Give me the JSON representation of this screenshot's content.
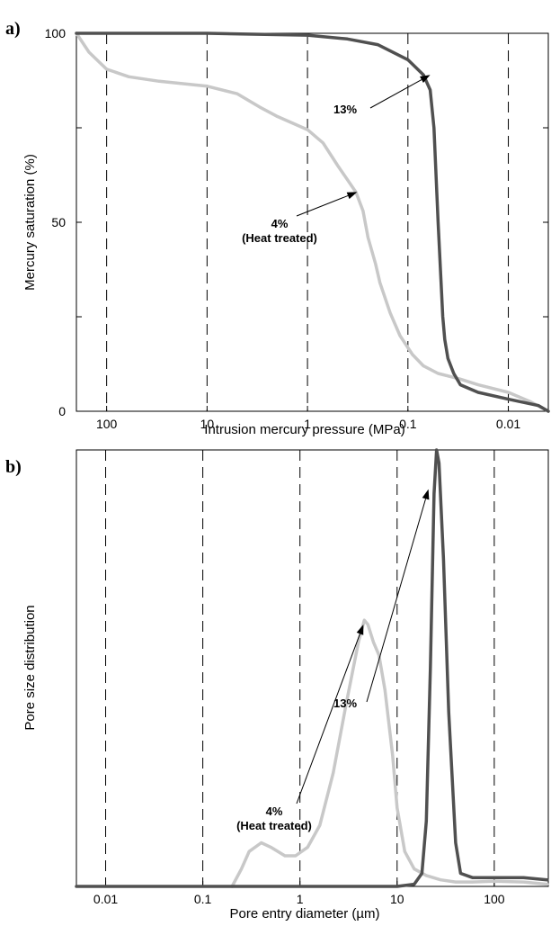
{
  "chart_data": [
    {
      "panel": "a)",
      "type": "line",
      "xlabel": "Intrusion mercury pressure (MPa)",
      "ylabel": "Mercury saturation (%)",
      "x_scale": "log",
      "x_reversed": true,
      "xlim": [
        200,
        0.004
      ],
      "ylim": [
        0,
        100
      ],
      "x_ticks": [
        {
          "value": 100,
          "label": "100"
        },
        {
          "value": 10,
          "label": "10"
        },
        {
          "value": 1,
          "label": "1"
        },
        {
          "value": 0.1,
          "label": "0.1"
        },
        {
          "value": 0.01,
          "label": "0.01"
        }
      ],
      "y_ticks": [
        {
          "value": 0,
          "label": "0"
        },
        {
          "value": 50,
          "label": "50"
        },
        {
          "value": 100,
          "label": "100"
        }
      ],
      "grid": "vertical dashed at major x ticks",
      "series": [
        {
          "color": "#c8c8c8",
          "points": [
            [
              200,
              100
            ],
            [
              150,
              95
            ],
            [
              100,
              90.5
            ],
            [
              60,
              88.5
            ],
            [
              30,
              87.3
            ],
            [
              10,
              86
            ],
            [
              5,
              84
            ],
            [
              3,
              80.5
            ],
            [
              2,
              78
            ],
            [
              1,
              74.5
            ],
            [
              0.7,
              71
            ],
            [
              0.5,
              65
            ],
            [
              0.33,
              58
            ],
            [
              0.28,
              53
            ],
            [
              0.25,
              46
            ],
            [
              0.21,
              39
            ],
            [
              0.19,
              34
            ],
            [
              0.15,
              26
            ],
            [
              0.12,
              20
            ],
            [
              0.09,
              15
            ],
            [
              0.07,
              12
            ],
            [
              0.05,
              10
            ],
            [
              0.03,
              8.5
            ],
            [
              0.02,
              7
            ],
            [
              0.01,
              5
            ],
            [
              0.006,
              2.5
            ],
            [
              0.004,
              0
            ]
          ]
        },
        {
          "color": "#505050",
          "points": [
            [
              200,
              100
            ],
            [
              10,
              100
            ],
            [
              1,
              99.5
            ],
            [
              0.4,
              98.5
            ],
            [
              0.2,
              97
            ],
            [
              0.1,
              93
            ],
            [
              0.07,
              89
            ],
            [
              0.06,
              85
            ],
            [
              0.055,
              75
            ],
            [
              0.05,
              50
            ],
            [
              0.045,
              25
            ],
            [
              0.043,
              19
            ],
            [
              0.04,
              14
            ],
            [
              0.035,
              10
            ],
            [
              0.03,
              7
            ],
            [
              0.02,
              5
            ],
            [
              0.01,
              3.2
            ],
            [
              0.005,
              1.5
            ],
            [
              0.004,
              0
            ]
          ]
        }
      ],
      "annotations": [
        {
          "lines": [
            "13%"
          ],
          "arrow_to": [
            0.06,
            89
          ]
        },
        {
          "lines": [
            "4%",
            "(Heat treated)"
          ],
          "arrow_to": [
            0.32,
            58
          ]
        }
      ]
    },
    {
      "panel": "b)",
      "type": "line",
      "xlabel": "Pore entry diameter (µm)",
      "ylabel": "Pore size distribution",
      "x_scale": "log",
      "xlim": [
        0.005,
        360
      ],
      "ylim": [
        0,
        1
      ],
      "x_ticks": [
        {
          "value": 0.01,
          "label": "0.01"
        },
        {
          "value": 0.1,
          "label": "0.1"
        },
        {
          "value": 1,
          "label": "1"
        },
        {
          "value": 10,
          "label": "10"
        },
        {
          "value": 100,
          "label": "100"
        }
      ],
      "grid": "vertical dashed at major x ticks",
      "series": [
        {
          "color": "#c8c8c8",
          "points": [
            [
              0.2,
              0
            ],
            [
              0.25,
              0.04
            ],
            [
              0.3,
              0.08
            ],
            [
              0.4,
              0.1
            ],
            [
              0.5,
              0.09
            ],
            [
              0.7,
              0.07
            ],
            [
              0.9,
              0.07
            ],
            [
              1.2,
              0.09
            ],
            [
              1.6,
              0.14
            ],
            [
              2.2,
              0.26
            ],
            [
              3,
              0.42
            ],
            [
              4,
              0.56
            ],
            [
              4.6,
              0.61
            ],
            [
              5,
              0.6
            ],
            [
              5.7,
              0.56
            ],
            [
              6.5,
              0.53
            ],
            [
              7.5,
              0.45
            ],
            [
              9,
              0.3
            ],
            [
              10,
              0.18
            ],
            [
              12,
              0.08
            ],
            [
              15,
              0.04
            ],
            [
              20,
              0.025
            ],
            [
              28,
              0.015
            ],
            [
              40,
              0.01
            ],
            [
              60,
              0.01
            ],
            [
              100,
              0.012
            ],
            [
              200,
              0.01
            ],
            [
              350,
              0.005
            ]
          ]
        },
        {
          "color": "#505050",
          "points": [
            [
              0.005,
              0
            ],
            [
              10,
              0
            ],
            [
              15,
              0.005
            ],
            [
              18,
              0.03
            ],
            [
              20,
              0.15
            ],
            [
              22,
              0.5
            ],
            [
              24,
              0.9
            ],
            [
              25.5,
              1
            ],
            [
              27,
              0.97
            ],
            [
              30,
              0.75
            ],
            [
              34,
              0.4
            ],
            [
              40,
              0.1
            ],
            [
              45,
              0.03
            ],
            [
              60,
              0.02
            ],
            [
              100,
              0.02
            ],
            [
              200,
              0.02
            ],
            [
              350,
              0.015
            ]
          ]
        }
      ],
      "annotations": [
        {
          "lines": [
            "13%"
          ],
          "arrow_to": [
            21,
            0.91
          ]
        },
        {
          "lines": [
            "4%",
            "(Heat treated)"
          ],
          "arrow_to": [
            4.5,
            0.6
          ]
        }
      ]
    }
  ]
}
